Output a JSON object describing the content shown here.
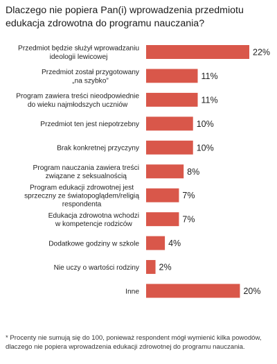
{
  "title": "Dlaczego nie popiera Pan(i) wprowadzenia przedmiotu edukacja zdrowotna do programu nauczania?",
  "footnote": "* Procenty nie sumują się do 100, ponieważ respondent mógł wymienić kilka powodów, dlaczego nie popiera wprowadzenia edukacji zdrowotnej do programu nauczania.",
  "colors": {
    "bar": "#d9574a"
  },
  "chart_data": {
    "type": "bar",
    "orientation": "horizontal",
    "value_suffix": "%",
    "xlim": [
      0,
      22
    ],
    "categories": [
      [
        "Przedmiot będzie służył wprowadzaniu",
        "ideologii lewicowej"
      ],
      [
        "Przedmiot został przygotowany",
        "„na szybko”"
      ],
      [
        "Program zawiera treści nieodpowiednie",
        "do wieku najmłodszych uczniów"
      ],
      [
        "Przedmiot ten jest niepotrzebny"
      ],
      [
        "Brak konkretnej przyczyny"
      ],
      [
        "Program nauczania zawiera treści",
        "związane  z seksualnością"
      ],
      [
        "Program edukacji zdrowotnej jest",
        "sprzeczny ze światopoglądem/religią",
        "respondenta"
      ],
      [
        "Edukacja zdrowotna wchodzi",
        "w kompetencje rodziców"
      ],
      [
        "Dodatkowe godziny w szkole"
      ],
      [
        "Nie uczy o wartości rodziny"
      ],
      [
        "Inne"
      ]
    ],
    "values": [
      22,
      11,
      11,
      10,
      10,
      8,
      7,
      7,
      4,
      2,
      20
    ]
  }
}
